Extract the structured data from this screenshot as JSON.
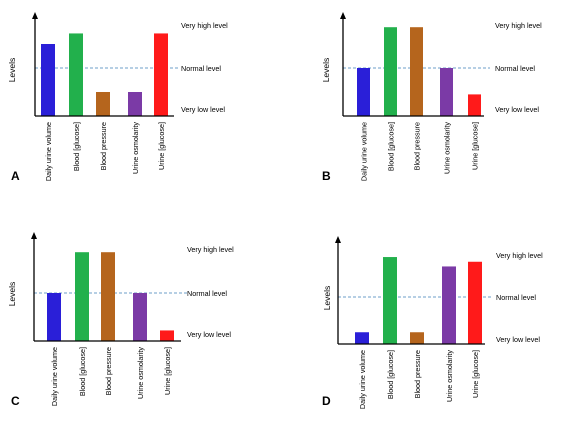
{
  "chart_data": [
    {
      "type": "bar",
      "panel_label": "A",
      "ylabel": "Levels",
      "categories": [
        "Daily urine volume",
        "Blood [glucose]",
        "Blood pressure",
        "Urine osmolarity",
        "Urine [glucose]"
      ],
      "values": [
        1.5,
        1.72,
        0.5,
        0.5,
        1.72
      ],
      "colors": [
        "#2a1fd8",
        "#22b04c",
        "#b5651d",
        "#7b3aa6",
        "#ff1a1a"
      ],
      "reference_labels": [
        "Very high level",
        "Normal level",
        "Very low level"
      ],
      "reference_line": 1.0,
      "reference_line_color": "#6d9fc9",
      "axes_color": "#000000"
    },
    {
      "type": "bar",
      "panel_label": "B",
      "ylabel": "Levels",
      "categories": [
        "Daily urine volume",
        "Blood [glucose]",
        "Blood pressure",
        "Urine osmolarity",
        "Urine [glucose]"
      ],
      "values": [
        1.0,
        1.85,
        1.85,
        1.0,
        0.45
      ],
      "colors": [
        "#2a1fd8",
        "#22b04c",
        "#b5651d",
        "#7b3aa6",
        "#ff1a1a"
      ],
      "reference_labels": [
        "Very high level",
        "Normal level",
        "Very low level"
      ],
      "reference_line": 1.0,
      "reference_line_color": "#6d9fc9",
      "axes_color": "#000000"
    },
    {
      "type": "bar",
      "panel_label": "C",
      "ylabel": "Levels",
      "categories": [
        "Daily urine volume",
        "Blood [glucose]",
        "Blood pressure",
        "Urine osmolarity",
        "Urine [glucose]"
      ],
      "values": [
        1.0,
        1.85,
        1.85,
        1.0,
        0.22
      ],
      "colors": [
        "#2a1fd8",
        "#22b04c",
        "#b5651d",
        "#7b3aa6",
        "#ff1a1a"
      ],
      "reference_labels": [
        "Very high level",
        "Normal level",
        "Very low level"
      ],
      "reference_line": 1.0,
      "reference_line_color": "#6d9fc9",
      "axes_color": "#000000"
    },
    {
      "type": "bar",
      "panel_label": "D",
      "ylabel": "Levels",
      "categories": [
        "Daily urine volume",
        "Blood [glucose]",
        "Blood pressure",
        "Urine osmolarity",
        "Urine [glucose]"
      ],
      "values": [
        0.25,
        1.85,
        0.25,
        1.65,
        1.75
      ],
      "colors": [
        "#2a1fd8",
        "#22b04c",
        "#b5651d",
        "#7b3aa6",
        "#ff1a1a"
      ],
      "reference_labels": [
        "Very high level",
        "Normal level",
        "Very low level"
      ],
      "reference_line": 1.0,
      "reference_line_color": "#6d9fc9",
      "axes_color": "#000000"
    }
  ]
}
